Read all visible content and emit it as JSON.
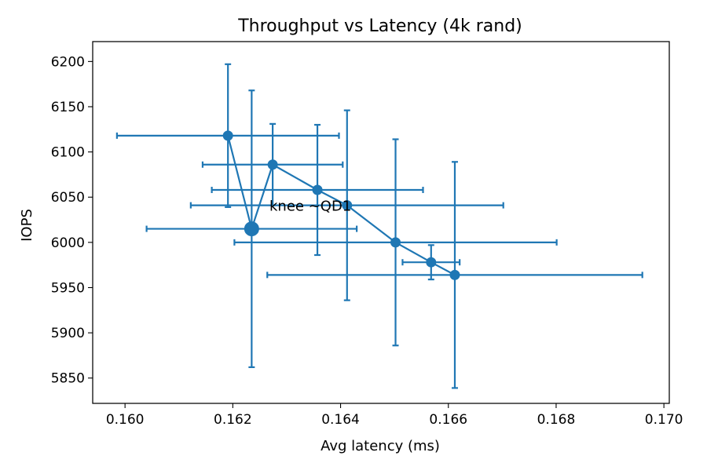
{
  "chart_data": {
    "type": "scatter",
    "title": "Throughput vs Latency (4k rand)",
    "xlabel": "Avg latency (ms)",
    "ylabel": "IOPS",
    "xlim": [
      0.1594,
      0.1701
    ],
    "ylim": [
      5822,
      6222
    ],
    "x_ticks": [
      0.16,
      0.162,
      0.164,
      0.166,
      0.168,
      0.17
    ],
    "x_tick_labels": [
      "0.160",
      "0.162",
      "0.164",
      "0.166",
      "0.168",
      "0.170"
    ],
    "y_ticks": [
      5850,
      5900,
      5950,
      6000,
      6050,
      6100,
      6150,
      6200
    ],
    "y_tick_labels": [
      "5850",
      "5900",
      "5950",
      "6000",
      "6050",
      "6100",
      "6150",
      "6200"
    ],
    "grid": false,
    "color": "#1f77b4",
    "series": [
      {
        "points": [
          {
            "x": 0.16191,
            "y": 6118,
            "xerr": 0.00206,
            "yerr": 79
          },
          {
            "x": 0.16235,
            "y": 6015,
            "xerr": 0.00195,
            "yerr": 153,
            "highlight": true
          },
          {
            "x": 0.16274,
            "y": 6086,
            "xerr": 0.0013,
            "yerr": 45
          },
          {
            "x": 0.16357,
            "y": 6058,
            "xerr": 0.00196,
            "yerr": 72
          },
          {
            "x": 0.16412,
            "y": 6041,
            "xerr": 0.0029,
            "yerr": 105
          },
          {
            "x": 0.16502,
            "y": 6000,
            "xerr": 0.00299,
            "yerr": 114
          },
          {
            "x": 0.16568,
            "y": 5978,
            "xerr": 0.00053,
            "yerr": 19
          },
          {
            "x": 0.16612,
            "y": 5964,
            "xerr": 0.00348,
            "yerr": 125
          }
        ],
        "line_order": [
          0,
          1,
          2,
          3,
          4,
          5,
          6,
          7
        ]
      }
    ],
    "annotations": [
      {
        "text": "knee ~QD1",
        "x": 0.16268,
        "y": 6035
      }
    ]
  }
}
